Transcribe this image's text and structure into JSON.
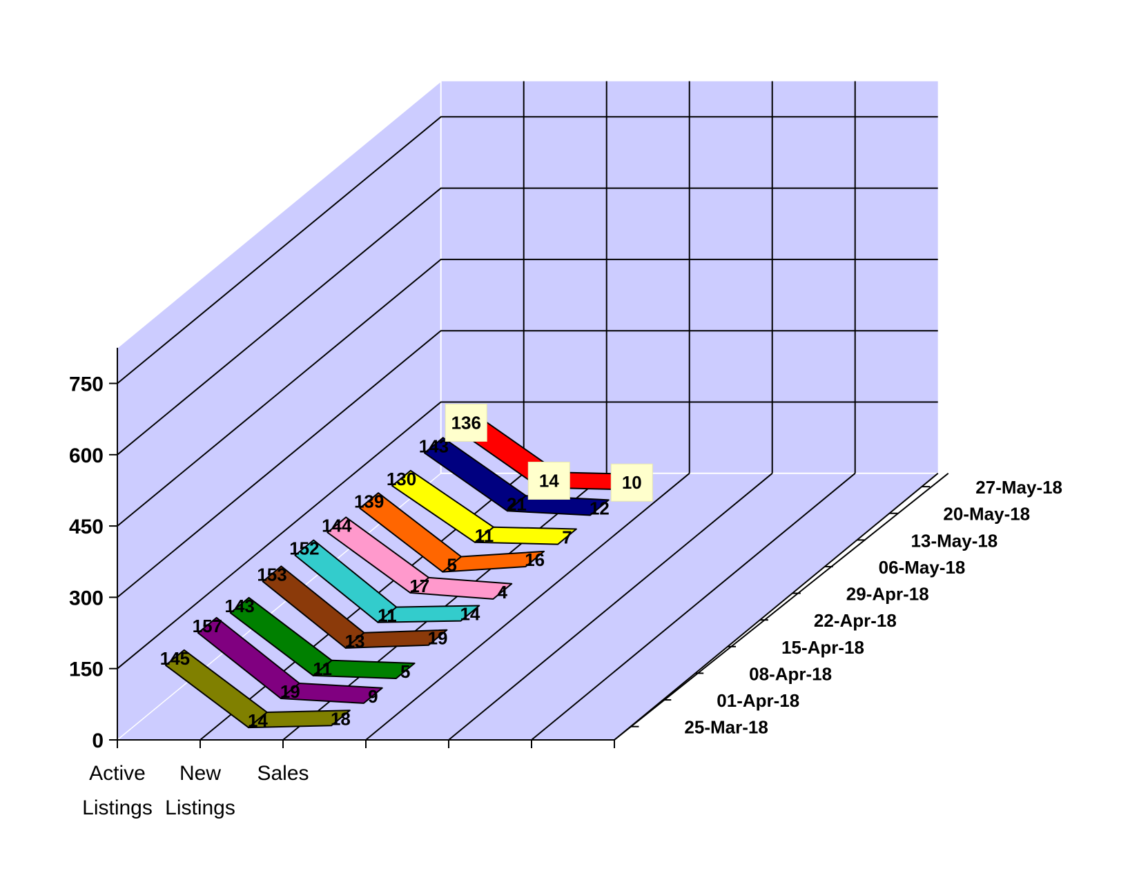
{
  "chart_data": {
    "type": "line",
    "subtype": "3d-line-ribbons",
    "title": "",
    "categories": [
      [
        "Active",
        "Listings"
      ],
      [
        "New",
        "Listings"
      ],
      [
        "Sales"
      ]
    ],
    "ylim": [
      0,
      750
    ],
    "yticks": [
      0,
      150,
      300,
      450,
      600,
      750
    ],
    "grid": true,
    "series": [
      {
        "name": "25-Mar-18",
        "color": "#808000",
        "values": [
          145,
          14,
          18
        ]
      },
      {
        "name": "01-Apr-18",
        "color": "#800080",
        "values": [
          157,
          19,
          9
        ]
      },
      {
        "name": "08-Apr-18",
        "color": "#008000",
        "values": [
          143,
          11,
          5
        ]
      },
      {
        "name": "15-Apr-18",
        "color": "#8b3a0a",
        "values": [
          153,
          13,
          19
        ]
      },
      {
        "name": "22-Apr-18",
        "color": "#33cccc",
        "values": [
          152,
          11,
          14
        ]
      },
      {
        "name": "29-Apr-18",
        "color": "#ff99cc",
        "values": [
          144,
          17,
          4
        ]
      },
      {
        "name": "06-May-18",
        "color": "#ff6600",
        "values": [
          139,
          5,
          16
        ]
      },
      {
        "name": "13-May-18",
        "color": "#ffff00",
        "values": [
          130,
          11,
          7
        ]
      },
      {
        "name": "20-May-18",
        "color": "#000080",
        "values": [
          143,
          21,
          12
        ]
      },
      {
        "name": "27-May-18",
        "color": "#ff0000",
        "values": [
          136,
          14,
          10
        ]
      }
    ]
  }
}
